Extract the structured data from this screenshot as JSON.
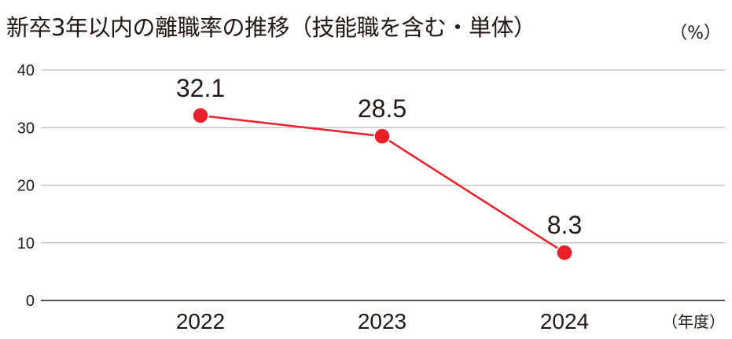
{
  "chart_data": {
    "type": "line",
    "title": "新卒3年以内の離職率の推移（技能職を含む・単体）",
    "ylabel": "（%）",
    "xlabel": "（年度）",
    "categories": [
      "2022",
      "2023",
      "2024"
    ],
    "values": [
      32.1,
      28.5,
      8.3
    ],
    "data_labels": [
      "32.1",
      "28.5",
      "8.3"
    ],
    "ylim": [
      0,
      40
    ],
    "yticks": [
      0,
      10,
      20,
      30,
      40
    ],
    "grid": true,
    "color": "#e8202a"
  }
}
